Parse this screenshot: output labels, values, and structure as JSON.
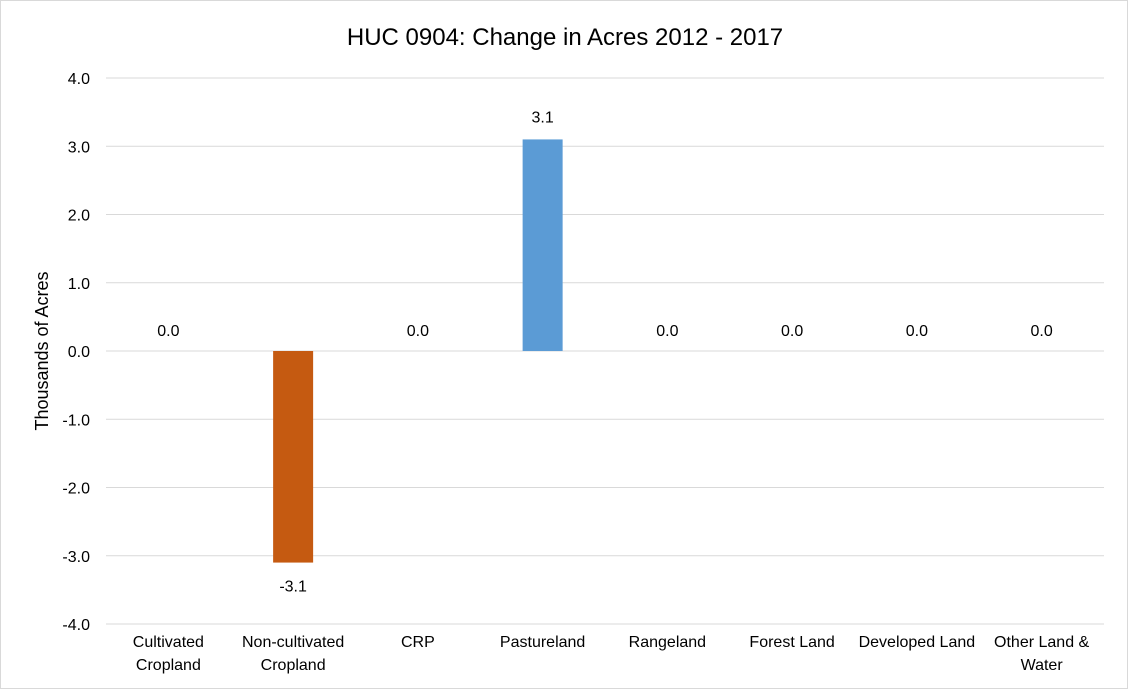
{
  "chart_data": {
    "type": "bar",
    "title": "HUC 0904: Change in Acres 2012 - 2017",
    "xlabel": "",
    "ylabel": "Thousands of Acres",
    "categories": [
      [
        "Cultivated",
        "Cropland"
      ],
      [
        "Non-cultivated",
        "Cropland"
      ],
      [
        "CRP"
      ],
      [
        "Pastureland"
      ],
      [
        "Rangeland"
      ],
      [
        "Forest Land"
      ],
      [
        "Developed Land"
      ],
      [
        "Other Land &",
        "Water"
      ]
    ],
    "values": [
      0.0,
      -3.1,
      0.0,
      3.1,
      0.0,
      0.0,
      0.0,
      0.0
    ],
    "data_labels": [
      "0.0",
      "-3.1",
      "0.0",
      "3.1",
      "0.0",
      "0.0",
      "0.0",
      "0.0"
    ],
    "bar_colors": [
      "#5b9bd5",
      "#c55a11",
      "#5b9bd5",
      "#5b9bd5",
      "#5b9bd5",
      "#5b9bd5",
      "#5b9bd5",
      "#5b9bd5"
    ],
    "ylim": [
      -4.0,
      4.0
    ],
    "yticks": [
      "4.0",
      "3.0",
      "2.0",
      "1.0",
      "0.0",
      "-1.0",
      "-2.0",
      "-3.0",
      "-4.0"
    ],
    "ytick_values": [
      4,
      3,
      2,
      1,
      0,
      -1,
      -2,
      -3,
      -4
    ],
    "grid": true,
    "gridline_color": "#d9d9d9",
    "legend": "none"
  }
}
